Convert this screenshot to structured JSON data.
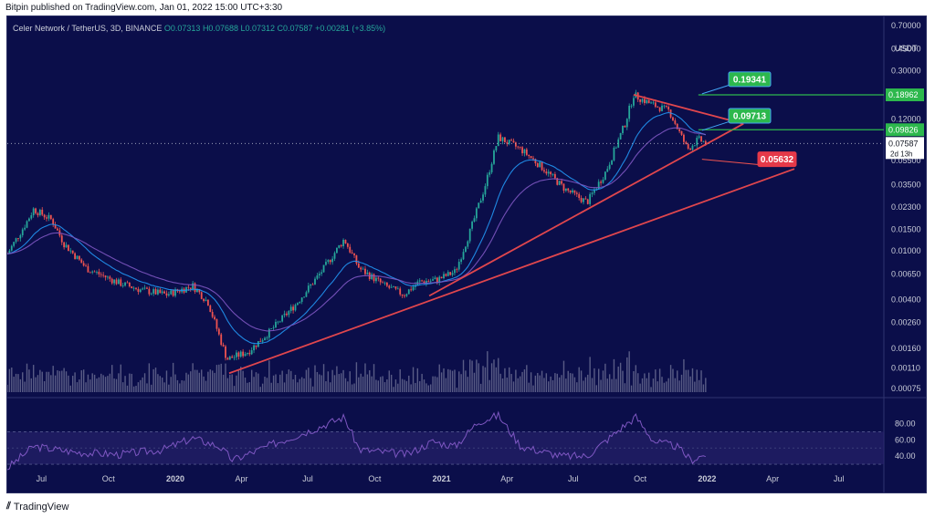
{
  "publish_line": "Bitpin published on TradingView.com, Jan 01, 2022 15:00 UTC+3:30",
  "footer_brand": "TradingView",
  "colors": {
    "background": "#0b0e4a",
    "up": "#26a69a",
    "down": "#ef5350",
    "trendline": "#e0464d",
    "resistance": "#2db84d",
    "rsi": "#7e57c2",
    "ema_fast": "#2196f3",
    "ema_slow": "#7e57c2"
  },
  "chart_data": {
    "type": "candlestick",
    "legend": {
      "symbol": "Celer Network / TetherUS, 3D, BINANCE",
      "open": "O0.07313",
      "high": "H0.07688",
      "low": "L0.07312",
      "close": "C0.07587",
      "change": "+0.00281 (+3.85%)"
    },
    "y_scale": "log",
    "ylim": [
      0.0007,
      0.7
    ],
    "y_ticks": [
      "0.70000",
      "0.45000",
      "0.30000",
      "0.18962",
      "0.12000",
      "0.09826",
      "0.07587",
      "0.05500",
      "0.03500",
      "0.02300",
      "0.01500",
      "0.01000",
      "0.00650",
      "0.00400",
      "0.00260",
      "0.00160",
      "0.00110",
      "0.00075"
    ],
    "y_tick_values": [
      0.7,
      0.45,
      0.3,
      0.18962,
      0.12,
      0.09826,
      0.07587,
      0.055,
      0.035,
      0.023,
      0.015,
      0.01,
      0.0065,
      0.004,
      0.0026,
      0.0016,
      0.0011,
      0.00075
    ],
    "currency_label": "USDT",
    "last_price": "0.07587",
    "countdown": "2d 13h",
    "x_range": [
      "2019-05-15",
      "2022-09-01"
    ],
    "x_ticks": [
      {
        "label": "Jul",
        "date": "2019-07-01",
        "bold": false
      },
      {
        "label": "Oct",
        "date": "2019-10-01",
        "bold": false
      },
      {
        "label": "2020",
        "date": "2020-01-01",
        "bold": true
      },
      {
        "label": "Apr",
        "date": "2020-04-01",
        "bold": false
      },
      {
        "label": "Jul",
        "date": "2020-07-01",
        "bold": false
      },
      {
        "label": "Oct",
        "date": "2020-10-01",
        "bold": false
      },
      {
        "label": "2021",
        "date": "2021-01-01",
        "bold": true
      },
      {
        "label": "Apr",
        "date": "2021-04-01",
        "bold": false
      },
      {
        "label": "Jul",
        "date": "2021-07-01",
        "bold": false
      },
      {
        "label": "Oct",
        "date": "2021-10-01",
        "bold": false
      },
      {
        "label": "2022",
        "date": "2022-01-01",
        "bold": true
      },
      {
        "label": "Apr",
        "date": "2022-04-01",
        "bold": false
      },
      {
        "label": "Jul",
        "date": "2022-07-01",
        "bold": false
      }
    ],
    "price_path": [
      {
        "date": "2019-05-15",
        "price": 0.0095
      },
      {
        "date": "2019-06-10",
        "price": 0.017
      },
      {
        "date": "2019-06-20",
        "price": 0.022
      },
      {
        "date": "2019-07-15",
        "price": 0.018
      },
      {
        "date": "2019-08-01",
        "price": 0.0115
      },
      {
        "date": "2019-09-01",
        "price": 0.0072
      },
      {
        "date": "2019-10-15",
        "price": 0.0055
      },
      {
        "date": "2019-11-15",
        "price": 0.0048
      },
      {
        "date": "2019-12-20",
        "price": 0.0044
      },
      {
        "date": "2020-01-25",
        "price": 0.0052
      },
      {
        "date": "2020-02-15",
        "price": 0.0038
      },
      {
        "date": "2020-03-12",
        "price": 0.0013
      },
      {
        "date": "2020-04-10",
        "price": 0.0015
      },
      {
        "date": "2020-05-10",
        "price": 0.0022
      },
      {
        "date": "2020-06-15",
        "price": 0.0037
      },
      {
        "date": "2020-07-20",
        "price": 0.0068
      },
      {
        "date": "2020-08-20",
        "price": 0.0125
      },
      {
        "date": "2020-09-10",
        "price": 0.0072
      },
      {
        "date": "2020-10-15",
        "price": 0.0052
      },
      {
        "date": "2020-11-10",
        "price": 0.0044
      },
      {
        "date": "2020-12-01",
        "price": 0.0056
      },
      {
        "date": "2020-12-25",
        "price": 0.0058
      },
      {
        "date": "2021-01-20",
        "price": 0.0068
      },
      {
        "date": "2021-02-10",
        "price": 0.015
      },
      {
        "date": "2021-03-01",
        "price": 0.033
      },
      {
        "date": "2021-03-20",
        "price": 0.085
      },
      {
        "date": "2021-04-20",
        "price": 0.068
      },
      {
        "date": "2021-05-20",
        "price": 0.048
      },
      {
        "date": "2021-06-20",
        "price": 0.032
      },
      {
        "date": "2021-07-20",
        "price": 0.025
      },
      {
        "date": "2021-08-15",
        "price": 0.045
      },
      {
        "date": "2021-09-10",
        "price": 0.11
      },
      {
        "date": "2021-09-22",
        "price": 0.19
      },
      {
        "date": "2021-10-15",
        "price": 0.16
      },
      {
        "date": "2021-11-10",
        "price": 0.14
      },
      {
        "date": "2021-12-05",
        "price": 0.068
      },
      {
        "date": "2021-12-20",
        "price": 0.082
      },
      {
        "date": "2022-01-01",
        "price": 0.07587
      }
    ],
    "trendlines": [
      {
        "name": "lower-support",
        "from": {
          "date": "2020-03-15",
          "price": 0.001
        },
        "to": {
          "date": "2022-05-01",
          "price": 0.047
        }
      },
      {
        "name": "upper-support",
        "from": {
          "date": "2020-12-15",
          "price": 0.0043
        },
        "to": {
          "date": "2022-02-20",
          "price": 0.11
        }
      },
      {
        "name": "descending-resistance",
        "from": {
          "date": "2021-09-22",
          "price": 0.19
        },
        "to": {
          "date": "2022-02-20",
          "price": 0.11
        }
      }
    ],
    "levels": [
      {
        "label": "0.18962",
        "price": 0.18962
      },
      {
        "label": "0.09826",
        "price": 0.09826
      }
    ],
    "callouts": [
      {
        "label": "0.19341",
        "price": 0.19341
      },
      {
        "label": "0.09713",
        "price": 0.09713
      },
      {
        "label": "0.05632",
        "price": 0.05632
      }
    ],
    "rsi": {
      "ticks": [
        "80.00",
        "60.00",
        "40.00"
      ],
      "tick_values": [
        80,
        60,
        40
      ],
      "band": [
        30,
        70
      ],
      "path": [
        {
          "date": "2019-05-15",
          "value": 25
        },
        {
          "date": "2019-06-20",
          "value": 52
        },
        {
          "date": "2019-08-15",
          "value": 45
        },
        {
          "date": "2019-10-15",
          "value": 42
        },
        {
          "date": "2019-12-15",
          "value": 48
        },
        {
          "date": "2020-01-25",
          "value": 62
        },
        {
          "date": "2020-03-01",
          "value": 52
        },
        {
          "date": "2020-03-20",
          "value": 35
        },
        {
          "date": "2020-05-15",
          "value": 55
        },
        {
          "date": "2020-07-15",
          "value": 75
        },
        {
          "date": "2020-08-20",
          "value": 88
        },
        {
          "date": "2020-09-10",
          "value": 48
        },
        {
          "date": "2020-11-15",
          "value": 42
        },
        {
          "date": "2020-12-20",
          "value": 58
        },
        {
          "date": "2021-01-20",
          "value": 52
        },
        {
          "date": "2021-02-20",
          "value": 82
        },
        {
          "date": "2021-03-20",
          "value": 90
        },
        {
          "date": "2021-04-20",
          "value": 52
        },
        {
          "date": "2021-06-15",
          "value": 40
        },
        {
          "date": "2021-07-20",
          "value": 40
        },
        {
          "date": "2021-09-10",
          "value": 78
        },
        {
          "date": "2021-09-25",
          "value": 88
        },
        {
          "date": "2021-10-20",
          "value": 58
        },
        {
          "date": "2021-11-20",
          "value": 52
        },
        {
          "date": "2021-12-10",
          "value": 35
        },
        {
          "date": "2022-01-01",
          "value": 43
        }
      ]
    }
  }
}
